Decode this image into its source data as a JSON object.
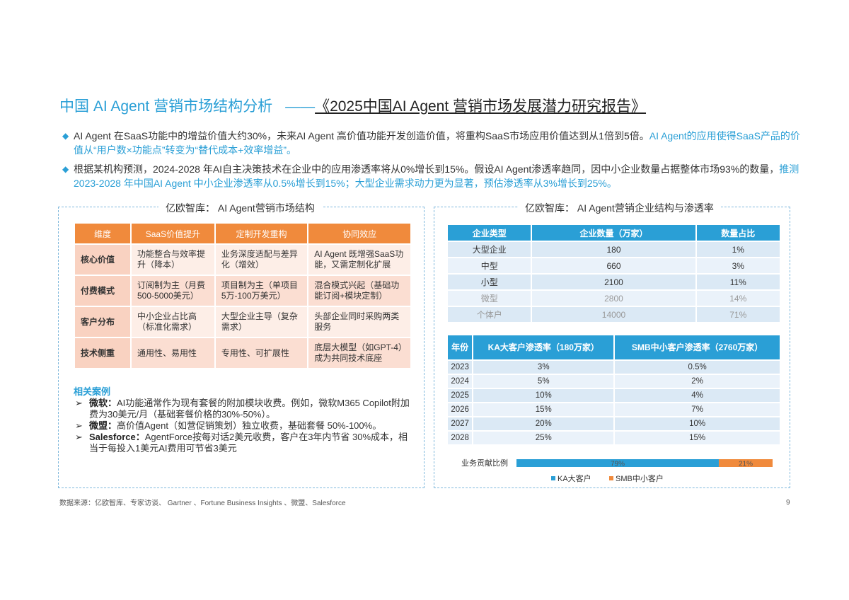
{
  "header": {
    "title": "中国 AI Agent  营销市场结构分析",
    "dash": "——",
    "report": "《2025中国AI Agent 营销市场发展潜力研究报告》"
  },
  "bullets": [
    {
      "text": "AI Agent 在SaaS功能中的增益价值大约30%，未来AI Agent 高价值功能开发创造价值，将重构SaaS市场应用价值达到从1倍到5倍。",
      "highlight": "AI Agent的应用使得SaaS产品的价值从“用户数×功能点”转变为“替代成本+效率增益”。"
    },
    {
      "text": "根据某机构预测，2024-2028 年AI自主决策技术在企业中的应用渗透率将从0%增长到15%。假设AI Agent渗透率趋同，因中小企业数量占据整体市场93%的数量，",
      "highlight": "推测2023-2028 年中国AI Agent 中小企业渗透率从0.5%增长到15%；大型企业需求动力更为显著，预估渗透率从3%增长到25%。"
    }
  ],
  "left_panel": {
    "title": "亿欧智库： AI Agent营销市场结构",
    "table": {
      "header": [
        "维度",
        "SaaS价值提升",
        "定制开发重构",
        "协同效应"
      ],
      "rows": [
        [
          "核心价值",
          "功能整合与效率提升（降本）",
          "业务深度适配与差异化（增效）",
          "AI Agent 既增强SaaS功能，又需定制化扩展"
        ],
        [
          "付费模式",
          "订阅制为主（月费500-5000美元）",
          "项目制为主（单项目5万-100万美元）",
          "混合模式兴起（基础功能订阅+模块定制）"
        ],
        [
          "客户分布",
          "中小企业占比高（标准化需求）",
          "大型企业主导（复杂需求）",
          "头部企业同时采购两类服务"
        ],
        [
          "技术侧重",
          "通用性、易用性",
          "专用性、可扩展性",
          "底层大模型（如GPT-4）成为共同技术底座"
        ]
      ]
    },
    "cases": {
      "title": "相关案例",
      "items": [
        {
          "name": "微软：",
          "text": "AI功能通常作为现有套餐的附加模块收费。例如，微软M365 Copilot附加费为30美元/月（基础套餐价格的30%-50%）。"
        },
        {
          "name": "微盟：",
          "text": "高价值Agent（如营促销策划）独立收费，基础套餐 50%-100%。"
        },
        {
          "name": "Salesforce：",
          "text": "AgentForce按每对话2美元收费，客户在3年内节省 30%成本，相当于每投入1美元AI费用可节省3美元"
        }
      ]
    }
  },
  "right_panel": {
    "title": "亿欧智库： AI Agent营销企业结构与渗透率",
    "company_table": {
      "header": [
        "企业类型",
        "企业数量（万家）",
        "数量占比"
      ],
      "rows": [
        [
          "大型企业",
          "180",
          "1%"
        ],
        [
          "中型",
          "660",
          "3%"
        ],
        [
          "小型",
          "2100",
          "11%"
        ],
        [
          "微型",
          "2800",
          "14%"
        ],
        [
          "个体户",
          "14000",
          "71%"
        ]
      ]
    },
    "penetration_table": {
      "header": [
        "年份",
        "KA大客户渗透率（180万家）",
        "SMB中小客户渗透率（2760万家）"
      ],
      "rows": [
        [
          "2023",
          "3%",
          "0.5%"
        ],
        [
          "2024",
          "5%",
          "2%"
        ],
        [
          "2025",
          "10%",
          "4%"
        ],
        [
          "2026",
          "15%",
          "7%"
        ],
        [
          "2027",
          "20%",
          "10%"
        ],
        [
          "2028",
          "25%",
          "15%"
        ]
      ]
    },
    "contribution": {
      "label": "业务贡献比例",
      "xlim": [
        0,
        100
      ],
      "series": [
        {
          "name": "KA大客户",
          "color": "#2a9fd6",
          "values": [
            79
          ],
          "value_labels": [
            "79%"
          ]
        },
        {
          "name": "SMB中小客户",
          "color": "#f08a3c",
          "values": [
            21
          ],
          "value_labels": [
            "21%"
          ]
        }
      ]
    }
  },
  "footer": {
    "source": "数据来源：亿欧智库、专家访谈、 Gartner 、Fortune Business Insights 、微盟、Salesforce",
    "page": "9"
  }
}
